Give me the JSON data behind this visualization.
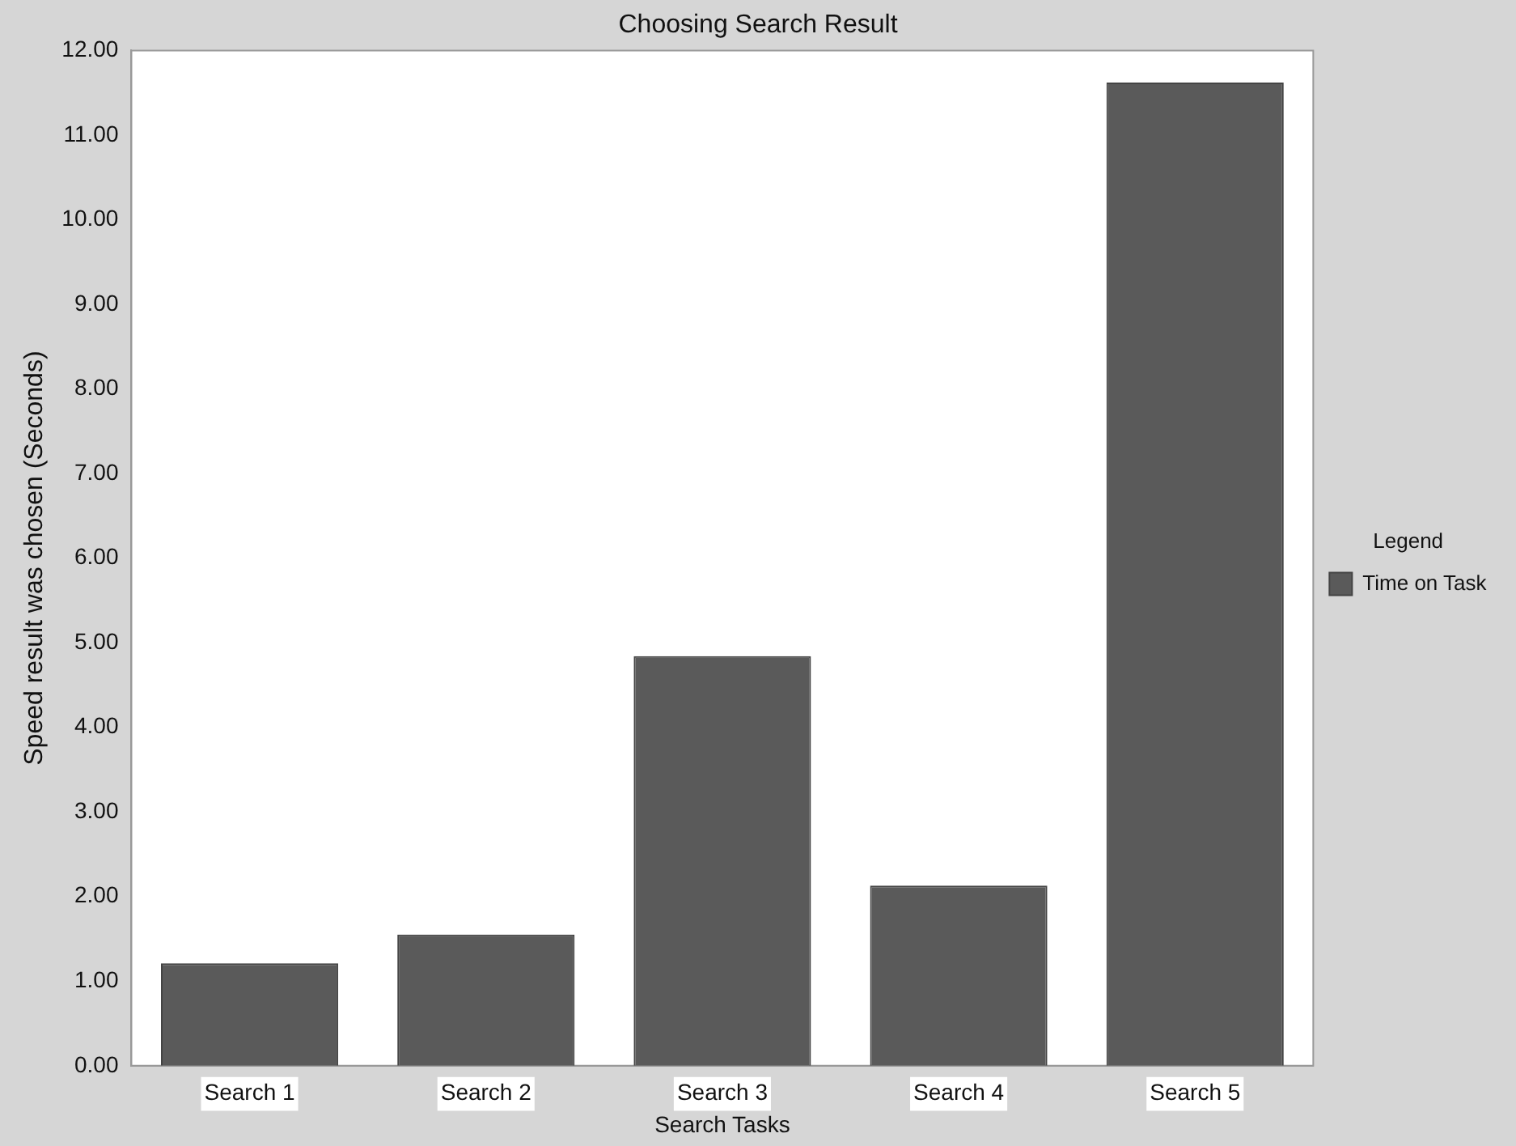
{
  "chart_data": {
    "type": "bar",
    "title": "Choosing Search Result",
    "xlabel": "Search Tasks",
    "ylabel": "Speed result was chosen (Seconds)",
    "legend_title": "Legend",
    "categories": [
      "Search 1",
      "Search 2",
      "Search 3",
      "Search 4",
      "Search 5"
    ],
    "series": [
      {
        "name": "Time on Task",
        "color": "#5a5a5a",
        "values": [
          1.21,
          1.55,
          4.84,
          2.13,
          11.62
        ]
      }
    ],
    "ylim": [
      0,
      12
    ],
    "yticks": [
      {
        "value": 0,
        "label": "0.00"
      },
      {
        "value": 1,
        "label": "1.00"
      },
      {
        "value": 2,
        "label": "2.00"
      },
      {
        "value": 3,
        "label": "3.00"
      },
      {
        "value": 4,
        "label": "4.00"
      },
      {
        "value": 5,
        "label": "5.00"
      },
      {
        "value": 6,
        "label": "6.00"
      },
      {
        "value": 7,
        "label": "7.00"
      },
      {
        "value": 8,
        "label": "8.00"
      },
      {
        "value": 9,
        "label": "9.00"
      },
      {
        "value": 10,
        "label": "10.00"
      },
      {
        "value": 11,
        "label": "11.00"
      },
      {
        "value": 12,
        "label": "12.00"
      }
    ],
    "grid": false,
    "legend": "right"
  }
}
